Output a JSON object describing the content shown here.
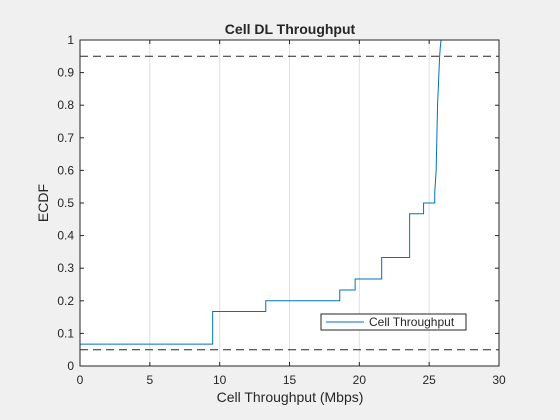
{
  "chart_data": {
    "type": "line",
    "title": "Cell DL Throughput",
    "xlabel": "Cell Throughput (Mbps)",
    "ylabel": "ECDF",
    "xlim": [
      0,
      30
    ],
    "ylim": [
      0,
      1
    ],
    "x_ticks": [
      "0",
      "5",
      "10",
      "15",
      "20",
      "25",
      "30"
    ],
    "y_ticks": [
      "0",
      "0.1",
      "0.2",
      "0.3",
      "0.4",
      "0.5",
      "0.6",
      "0.7",
      "0.8",
      "0.9",
      "1"
    ],
    "x_tick_values": [
      0,
      5,
      10,
      15,
      20,
      25,
      30
    ],
    "y_tick_values": [
      0,
      0.1,
      0.2,
      0.3,
      0.4,
      0.5,
      0.6,
      0.7,
      0.8,
      0.9,
      1
    ],
    "grid": "vertical",
    "legend_position": "lower-right",
    "reference_lines": [
      0.05,
      0.95
    ],
    "series": [
      {
        "name": "Cell Throughput",
        "color": "#0072bd",
        "x": [
          0,
          0,
          9.5,
          9.5,
          13.3,
          13.3,
          18.6,
          18.6,
          19.7,
          19.7,
          21.6,
          21.6,
          23.6,
          23.6,
          24.6,
          24.6,
          25.4,
          25.4,
          25.5,
          25.55,
          25.6,
          25.65,
          25.7,
          25.75,
          25.8,
          25.85,
          25.9
        ],
        "y": [
          0,
          0.067,
          0.067,
          0.167,
          0.167,
          0.2,
          0.2,
          0.233,
          0.233,
          0.267,
          0.267,
          0.333,
          0.333,
          0.467,
          0.467,
          0.5,
          0.5,
          0.533,
          0.6,
          0.7,
          0.8,
          0.85,
          0.9,
          0.95,
          0.98,
          1.0,
          1.0
        ]
      }
    ]
  }
}
